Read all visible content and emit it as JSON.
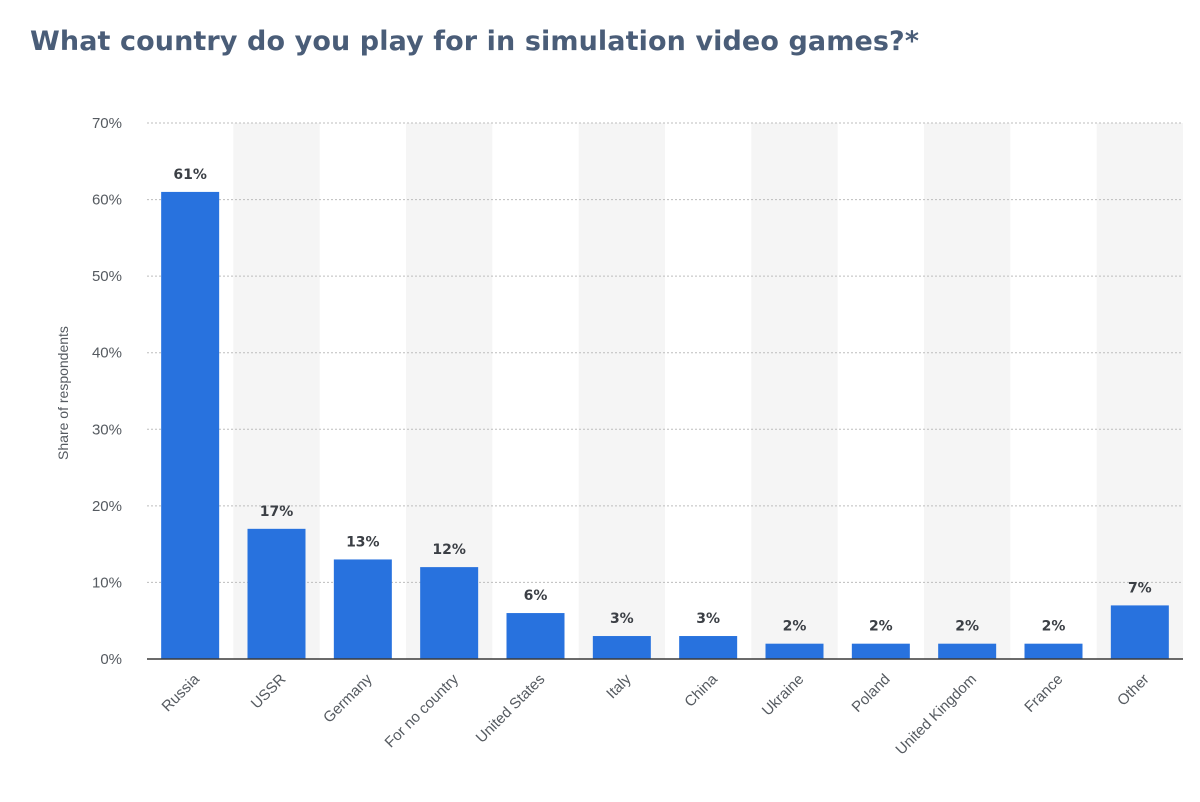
{
  "title": "What country do you play for in simulation video games?*",
  "colors": {
    "bar": "#2872de",
    "band": "#f5f5f5",
    "grid": "#bdbdbd",
    "axis": "#3a3a3a",
    "title": "#4a5d78"
  },
  "chart_data": {
    "type": "bar",
    "title": "What country do you play for in simulation video games?*",
    "xlabel": "",
    "ylabel": "Share of respondents",
    "categories": [
      "Russia",
      "USSR",
      "Germany",
      "For no country",
      "United States",
      "Italy",
      "China",
      "Ukraine",
      "Poland",
      "United Kingdom",
      "France",
      "Other"
    ],
    "values": [
      61,
      17,
      13,
      12,
      6,
      3,
      3,
      2,
      2,
      2,
      2,
      7
    ],
    "value_labels": [
      "61%",
      "17%",
      "13%",
      "12%",
      "6%",
      "3%",
      "3%",
      "2%",
      "2%",
      "2%",
      "2%",
      "7%"
    ],
    "ylim": [
      0,
      70
    ],
    "yticks": [
      0,
      10,
      20,
      30,
      40,
      50,
      60,
      70
    ],
    "ytick_labels": [
      "0%",
      "10%",
      "20%",
      "30%",
      "40%",
      "50%",
      "60%",
      "70%"
    ],
    "grid": true,
    "legend": "none"
  }
}
